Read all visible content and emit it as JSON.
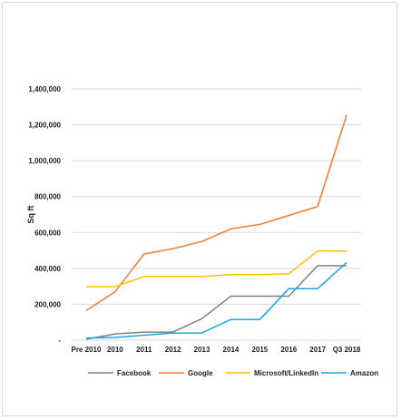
{
  "chart_data": {
    "type": "line",
    "title": "",
    "xlabel": "",
    "ylabel": "Sq ft",
    "categories": [
      "Pre 2010",
      "2010",
      "2011",
      "2012",
      "2013",
      "2014",
      "2015",
      "2016",
      "2017",
      "Q3 2018"
    ],
    "ylim": [
      0,
      1400000
    ],
    "yticks": [
      0,
      200000,
      400000,
      600000,
      800000,
      1000000,
      1200000,
      1400000
    ],
    "ytick_labels": [
      "-",
      "200,000",
      "400,000",
      "600,000",
      "800,000",
      "1,000,000",
      "1,200,000",
      "1,400,000"
    ],
    "grid": "horizontal",
    "legend_position": "bottom",
    "series": [
      {
        "name": "Facebook",
        "color": "#808080",
        "values": [
          5000,
          35000,
          45000,
          45000,
          120000,
          245000,
          245000,
          245000,
          415000,
          415000
        ]
      },
      {
        "name": "Google",
        "color": "#ED7D31",
        "values": [
          165000,
          270000,
          480000,
          510000,
          550000,
          620000,
          645000,
          695000,
          745000,
          1255000
        ]
      },
      {
        "name": "Microsoft/LinkedIn",
        "color": "#FFC000",
        "values": [
          298000,
          298000,
          355000,
          355000,
          355000,
          365000,
          365000,
          370000,
          497000,
          497000
        ]
      },
      {
        "name": "Amazon",
        "color": "#1AA7E2",
        "values": [
          12000,
          15000,
          28000,
          40000,
          40000,
          115000,
          115000,
          287000,
          287000,
          433000
        ]
      }
    ]
  }
}
